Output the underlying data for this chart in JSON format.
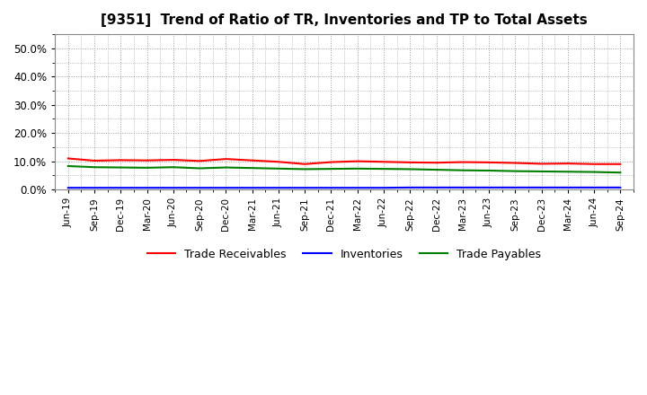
{
  "title": "[9351]  Trend of Ratio of TR, Inventories and TP to Total Assets",
  "x_labels": [
    "Jun-19",
    "Sep-19",
    "Dec-19",
    "Mar-20",
    "Jun-20",
    "Sep-20",
    "Dec-20",
    "Mar-21",
    "Jun-21",
    "Sep-21",
    "Dec-21",
    "Mar-22",
    "Jun-22",
    "Sep-22",
    "Dec-22",
    "Mar-23",
    "Jun-23",
    "Sep-23",
    "Dec-23",
    "Mar-24",
    "Jun-24",
    "Sep-24"
  ],
  "trade_receivables": [
    0.11,
    0.102,
    0.104,
    0.103,
    0.105,
    0.101,
    0.108,
    0.103,
    0.098,
    0.09,
    0.097,
    0.1,
    0.098,
    0.096,
    0.095,
    0.097,
    0.096,
    0.094,
    0.091,
    0.092,
    0.09,
    0.09
  ],
  "inventories": [
    0.006,
    0.006,
    0.006,
    0.006,
    0.006,
    0.006,
    0.006,
    0.006,
    0.006,
    0.006,
    0.006,
    0.006,
    0.006,
    0.007,
    0.007,
    0.007,
    0.007,
    0.007,
    0.007,
    0.007,
    0.007,
    0.007
  ],
  "trade_payables": [
    0.083,
    0.079,
    0.078,
    0.077,
    0.079,
    0.075,
    0.078,
    0.076,
    0.074,
    0.072,
    0.073,
    0.074,
    0.073,
    0.072,
    0.07,
    0.068,
    0.067,
    0.065,
    0.064,
    0.063,
    0.062,
    0.06
  ],
  "ylim": [
    0.0,
    0.55
  ],
  "yticks": [
    0.0,
    0.1,
    0.2,
    0.3,
    0.4,
    0.5
  ],
  "color_tr": "#ff0000",
  "color_inv": "#0000ff",
  "color_tp": "#008000",
  "bg_color": "#ffffff",
  "plot_bg_color": "#ffffff",
  "grid_color": "#999999",
  "legend_labels": [
    "Trade Receivables",
    "Inventories",
    "Trade Payables"
  ]
}
